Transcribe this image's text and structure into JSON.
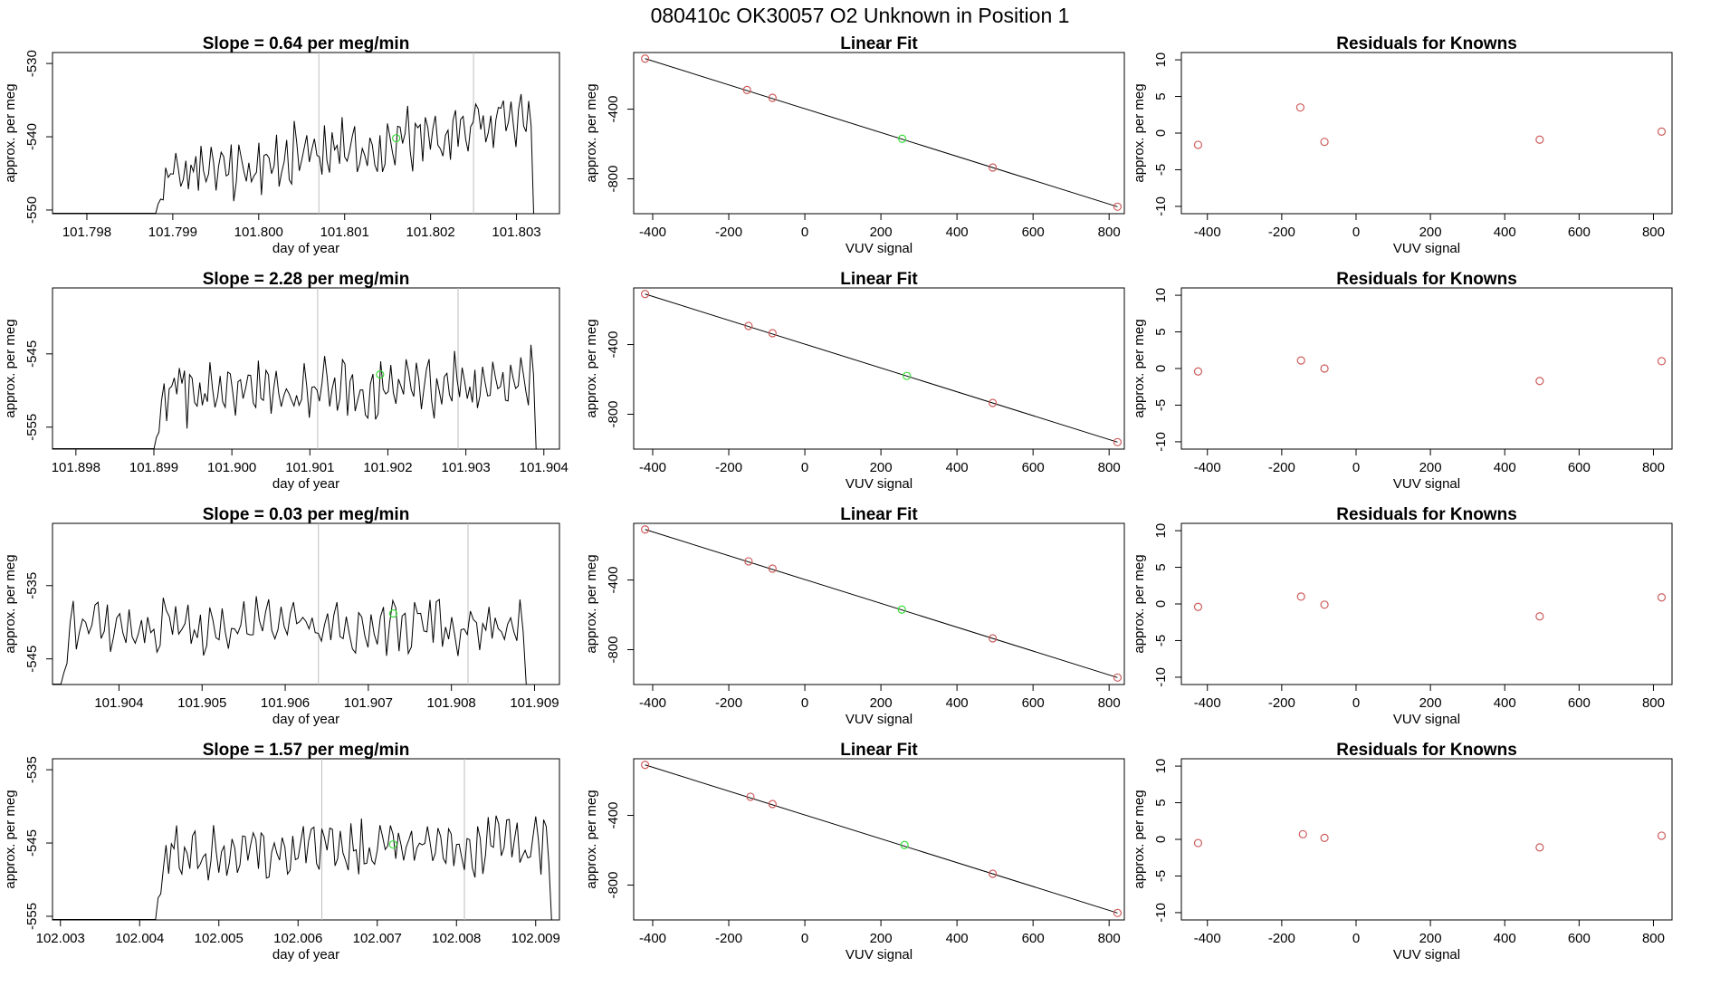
{
  "page_title": "080410c      OK30057   O2 Unknown in Position  1",
  "colors": {
    "axis": "#000000",
    "vline": "#bebebe",
    "known": "#cd5c5c",
    "unknown": "#3cdc3c",
    "line": "#000000"
  },
  "chart_data": [
    {
      "type": "line",
      "title": "Slope =  0.64  per meg/min",
      "xlabel": "day of year",
      "ylabel": "approx. per meg",
      "xlim": [
        101.7976,
        101.8035
      ],
      "ylim": [
        -550.5,
        -528.5
      ],
      "xticks": [
        "101.798",
        "101.799",
        "101.800",
        "101.801",
        "101.802",
        "101.803"
      ],
      "xtick_values": [
        101.798,
        101.799,
        101.8,
        101.801,
        101.802,
        101.803
      ],
      "yticks": [
        "-550",
        "-540",
        "-530"
      ],
      "ytick_values": [
        -550,
        -540,
        -530
      ],
      "vlines": [
        101.8007,
        101.8025
      ],
      "trace_start": 101.7988,
      "trace_end": 101.8032,
      "trace_base": -545.5,
      "trace_slope": 8.0,
      "trace_amp": 3.0,
      "trace_floor": -550.5,
      "seed": 11,
      "highlight": {
        "x": 101.8016,
        "y": -540.2
      }
    },
    {
      "type": "scatter",
      "title": "Linear Fit",
      "xlabel": "VUV signal",
      "ylabel": "approx. per meg",
      "xlim": [
        -450,
        840
      ],
      "ylim": [
        -1000,
        -75
      ],
      "xticks": [
        "-400",
        "-200",
        "0",
        "200",
        "400",
        "600",
        "800"
      ],
      "xtick_values": [
        -400,
        -200,
        0,
        200,
        400,
        600,
        800
      ],
      "yticks": [
        "-800",
        "-400"
      ],
      "ytick_values": [
        -800,
        -400
      ],
      "fit_line": {
        "x0": -420,
        "y0": -110,
        "x1": 822,
        "y1": -960
      },
      "points_known": [
        {
          "x": -420,
          "y": -110
        },
        {
          "x": -152,
          "y": -290
        },
        {
          "x": -85,
          "y": -335
        },
        {
          "x": 494,
          "y": -735
        },
        {
          "x": 822,
          "y": -960
        }
      ],
      "point_unknown": {
        "x": 256,
        "y": -570
      }
    },
    {
      "type": "scatter",
      "title": "Residuals for Knowns",
      "xlabel": "VUV signal",
      "ylabel": "approx. per meg",
      "xlim": [
        -470,
        850
      ],
      "ylim": [
        -11,
        11
      ],
      "xticks": [
        "-400",
        "-200",
        "0",
        "200",
        "400",
        "600",
        "800"
      ],
      "xtick_values": [
        -400,
        -200,
        0,
        200,
        400,
        600,
        800
      ],
      "yticks": [
        "-10",
        "-5",
        "0",
        "5",
        "10"
      ],
      "ytick_values": [
        -10,
        -5,
        0,
        5,
        10
      ],
      "points_known": [
        {
          "x": -425,
          "y": -1.6
        },
        {
          "x": -150,
          "y": 3.5
        },
        {
          "x": -85,
          "y": -1.2
        },
        {
          "x": 494,
          "y": -0.9
        },
        {
          "x": 822,
          "y": 0.2
        }
      ]
    },
    {
      "type": "line",
      "title": "Slope =  2.28  per meg/min",
      "xlabel": "day of year",
      "ylabel": "approx. per meg",
      "xlim": [
        101.8977,
        101.9042
      ],
      "ylim": [
        -558,
        -536
      ],
      "xticks": [
        "101.898",
        "101.899",
        "101.900",
        "101.901",
        "101.902",
        "101.903",
        "101.904"
      ],
      "xtick_values": [
        101.898,
        101.899,
        101.9,
        101.901,
        101.902,
        101.903,
        101.904
      ],
      "yticks": [
        "-555",
        "-545"
      ],
      "ytick_values": [
        -555,
        -545
      ],
      "vlines": [
        101.9011,
        101.9029
      ],
      "trace_start": 101.899,
      "trace_end": 101.9039,
      "trace_base": -550.5,
      "trace_slope": 1.9,
      "trace_amp": 3.0,
      "trace_floor": -558,
      "seed": 23,
      "highlight": {
        "x": 101.9019,
        "y": -547.8
      }
    },
    {
      "type": "scatter",
      "title": "Linear Fit",
      "xlabel": "VUV signal",
      "ylabel": "approx. per meg",
      "xlim": [
        -450,
        840
      ],
      "ylim": [
        -1000,
        -75
      ],
      "xticks": [
        "-400",
        "-200",
        "0",
        "200",
        "400",
        "600",
        "800"
      ],
      "xtick_values": [
        -400,
        -200,
        0,
        200,
        400,
        600,
        800
      ],
      "yticks": [
        "-800",
        "-400"
      ],
      "ytick_values": [
        -800,
        -400
      ],
      "fit_line": {
        "x0": -420,
        "y0": -110,
        "x1": 822,
        "y1": -960
      },
      "points_known": [
        {
          "x": -420,
          "y": -110
        },
        {
          "x": -148,
          "y": -293
        },
        {
          "x": -85,
          "y": -335
        },
        {
          "x": 494,
          "y": -735
        },
        {
          "x": 822,
          "y": -960
        }
      ],
      "point_unknown": {
        "x": 268,
        "y": -580
      }
    },
    {
      "type": "scatter",
      "title": "Residuals for Knowns",
      "xlabel": "VUV signal",
      "ylabel": "approx. per meg",
      "xlim": [
        -470,
        850
      ],
      "ylim": [
        -11,
        11
      ],
      "xticks": [
        "-400",
        "-200",
        "0",
        "200",
        "400",
        "600",
        "800"
      ],
      "xtick_values": [
        -400,
        -200,
        0,
        200,
        400,
        600,
        800
      ],
      "yticks": [
        "-10",
        "-5",
        "0",
        "5",
        "10"
      ],
      "ytick_values": [
        -10,
        -5,
        0,
        5,
        10
      ],
      "points_known": [
        {
          "x": -425,
          "y": -0.4
        },
        {
          "x": -148,
          "y": 1.1
        },
        {
          "x": -85,
          "y": 0.0
        },
        {
          "x": 494,
          "y": -1.7
        },
        {
          "x": 822,
          "y": 1.0
        }
      ]
    },
    {
      "type": "line",
      "title": "Slope =  0.03  per meg/min",
      "xlabel": "day of year",
      "ylabel": "approx. per meg",
      "xlim": [
        101.9032,
        101.9093
      ],
      "ylim": [
        -548.5,
        -526.5
      ],
      "xticks": [
        "101.904",
        "101.905",
        "101.906",
        "101.907",
        "101.908",
        "101.909"
      ],
      "xtick_values": [
        101.904,
        101.905,
        101.906,
        101.907,
        101.908,
        101.909
      ],
      "yticks": [
        "-545",
        "-535"
      ],
      "ytick_values": [
        -545,
        -535
      ],
      "vlines": [
        101.9064,
        101.9082
      ],
      "trace_start": 101.9033,
      "trace_end": 101.9089,
      "trace_base": -540.5,
      "trace_slope": 0.2,
      "trace_amp": 2.6,
      "trace_floor": -548.5,
      "seed": 37,
      "highlight": {
        "x": 101.9073,
        "y": -538.8
      }
    },
    {
      "type": "scatter",
      "title": "Linear Fit",
      "xlabel": "VUV signal",
      "ylabel": "approx. per meg",
      "xlim": [
        -450,
        840
      ],
      "ylim": [
        -1000,
        -75
      ],
      "xticks": [
        "-400",
        "-200",
        "0",
        "200",
        "400",
        "600",
        "800"
      ],
      "xtick_values": [
        -400,
        -200,
        0,
        200,
        400,
        600,
        800
      ],
      "yticks": [
        "-800",
        "-400"
      ],
      "ytick_values": [
        -800,
        -400
      ],
      "fit_line": {
        "x0": -420,
        "y0": -110,
        "x1": 822,
        "y1": -960
      },
      "points_known": [
        {
          "x": -420,
          "y": -110
        },
        {
          "x": -148,
          "y": -293
        },
        {
          "x": -85,
          "y": -335
        },
        {
          "x": 494,
          "y": -735
        },
        {
          "x": 822,
          "y": -960
        }
      ],
      "point_unknown": {
        "x": 255,
        "y": -570
      }
    },
    {
      "type": "scatter",
      "title": "Residuals for Knowns",
      "xlabel": "VUV signal",
      "ylabel": "approx. per meg",
      "xlim": [
        -470,
        850
      ],
      "ylim": [
        -11,
        11
      ],
      "xticks": [
        "-400",
        "-200",
        "0",
        "200",
        "400",
        "600",
        "800"
      ],
      "xtick_values": [
        -400,
        -200,
        0,
        200,
        400,
        600,
        800
      ],
      "yticks": [
        "-10",
        "-5",
        "0",
        "5",
        "10"
      ],
      "ytick_values": [
        -10,
        -5,
        0,
        5,
        10
      ],
      "points_known": [
        {
          "x": -425,
          "y": -0.4
        },
        {
          "x": -148,
          "y": 1.0
        },
        {
          "x": -85,
          "y": -0.1
        },
        {
          "x": 494,
          "y": -1.7
        },
        {
          "x": 822,
          "y": 0.9
        }
      ]
    },
    {
      "type": "line",
      "title": "Slope =  1.57  per meg/min",
      "xlabel": "day of year",
      "ylabel": "approx. per meg",
      "xlim": [
        102.0029,
        102.0093
      ],
      "ylim": [
        -555.5,
        -533.5
      ],
      "xticks": [
        "102.003",
        "102.004",
        "102.005",
        "102.006",
        "102.007",
        "102.008",
        "102.009"
      ],
      "xtick_values": [
        102.003,
        102.004,
        102.005,
        102.006,
        102.007,
        102.008,
        102.009
      ],
      "yticks": [
        "-555",
        "-545",
        "-535"
      ],
      "ytick_values": [
        -555,
        -545,
        -535
      ],
      "vlines": [
        102.0063,
        102.0081
      ],
      "trace_start": 102.0042,
      "trace_end": 102.0092,
      "trace_base": -546.5,
      "trace_slope": 1.3,
      "trace_amp": 2.6,
      "trace_floor": -555.5,
      "seed": 51,
      "highlight": {
        "x": 102.0072,
        "y": -545.2
      }
    },
    {
      "type": "scatter",
      "title": "Linear Fit",
      "xlabel": "VUV signal",
      "ylabel": "approx. per meg",
      "xlim": [
        -450,
        840
      ],
      "ylim": [
        -1000,
        -75
      ],
      "xticks": [
        "-400",
        "-200",
        "0",
        "200",
        "400",
        "600",
        "800"
      ],
      "xtick_values": [
        -400,
        -200,
        0,
        200,
        400,
        600,
        800
      ],
      "yticks": [
        "-800",
        "-400"
      ],
      "ytick_values": [
        -800,
        -400
      ],
      "fit_line": {
        "x0": -420,
        "y0": -110,
        "x1": 822,
        "y1": -960
      },
      "points_known": [
        {
          "x": -420,
          "y": -110
        },
        {
          "x": -143,
          "y": -293
        },
        {
          "x": -85,
          "y": -335
        },
        {
          "x": 494,
          "y": -735
        },
        {
          "x": 822,
          "y": -960
        }
      ],
      "point_unknown": {
        "x": 262,
        "y": -570
      }
    },
    {
      "type": "scatter",
      "title": "Residuals for Knowns",
      "xlabel": "VUV signal",
      "ylabel": "approx. per meg",
      "xlim": [
        -470,
        850
      ],
      "ylim": [
        -11,
        11
      ],
      "xticks": [
        "-400",
        "-200",
        "0",
        "200",
        "400",
        "600",
        "800"
      ],
      "xtick_values": [
        -400,
        -200,
        0,
        200,
        400,
        600,
        800
      ],
      "yticks": [
        "-10",
        "-5",
        "0",
        "5",
        "10"
      ],
      "ytick_values": [
        -10,
        -5,
        0,
        5,
        10
      ],
      "points_known": [
        {
          "x": -425,
          "y": -0.5
        },
        {
          "x": -143,
          "y": 0.7
        },
        {
          "x": -85,
          "y": 0.2
        },
        {
          "x": 494,
          "y": -1.1
        },
        {
          "x": 822,
          "y": 0.5
        }
      ]
    }
  ]
}
